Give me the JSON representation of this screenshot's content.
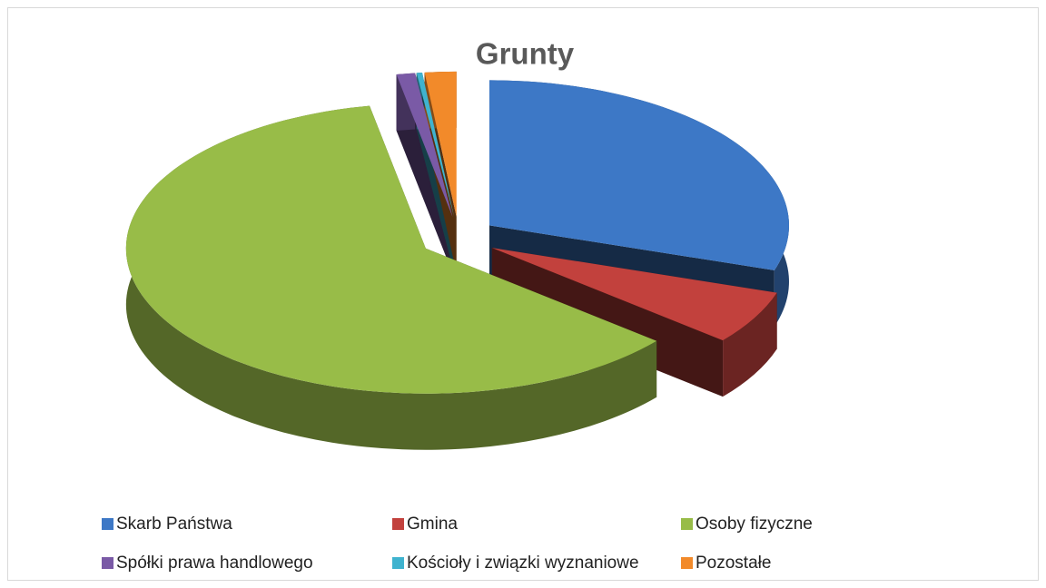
{
  "chart_data": {
    "type": "pie",
    "title": "Grunty",
    "categories": [
      "Skarb Państwa",
      "Gmina",
      "Osoby fizyczne",
      "Spółki prawa handlowego",
      "Kościoły i związki wyznaniowe",
      "Pozostałe"
    ],
    "values": [
      30,
      6,
      61,
      1,
      0.3,
      1.7
    ],
    "colors": [
      "#3d78c6",
      "#c2413d",
      "#98bc48",
      "#7a5aa6",
      "#3fb3cf",
      "#f28a2a"
    ],
    "legend": "bottom"
  }
}
